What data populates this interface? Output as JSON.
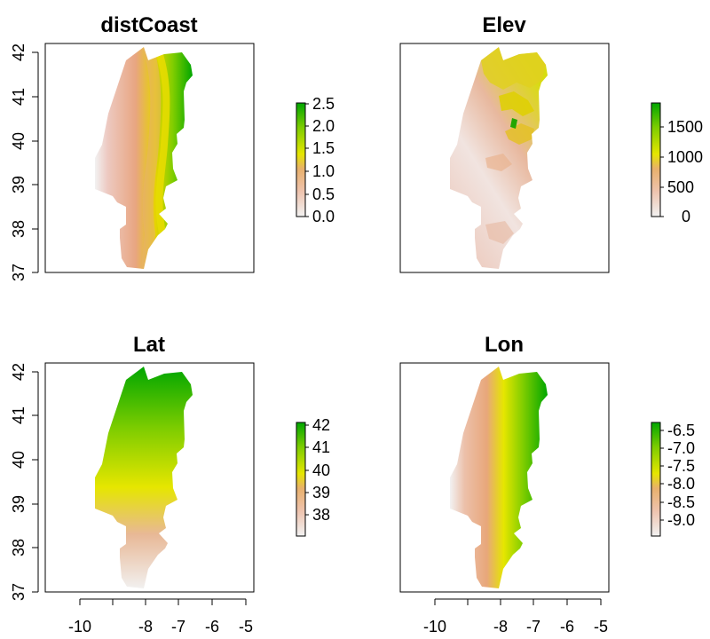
{
  "chart_data": [
    {
      "type": "heatmap",
      "title": "distCoast",
      "xlabel": "",
      "ylabel": "",
      "xlim": [
        -11,
        -4.9
      ],
      "ylim": [
        37,
        42
      ],
      "x_ticks": [],
      "y_ticks": [
        "37",
        "38",
        "39",
        "40",
        "41",
        "42"
      ],
      "field": "distance from coast, increasing from 0 at the west coast to 2.5 at the eastern border",
      "legend": {
        "ticks": [
          "0.0",
          "0.5",
          "1.0",
          "1.5",
          "2.0",
          "2.5"
        ],
        "min": 0,
        "max": 2.5
      }
    },
    {
      "type": "heatmap",
      "title": "Elev",
      "xlabel": "",
      "ylabel": "",
      "xlim": [
        -11,
        -4.9
      ],
      "ylim": [
        37,
        42
      ],
      "x_ticks": [],
      "y_ticks": [],
      "field": "elevation, low near the coast and high in the north-east mountains",
      "legend": {
        "ticks": [
          "0",
          "500",
          "1000",
          "1500"
        ],
        "min": 0,
        "max": 1900
      }
    },
    {
      "type": "heatmap",
      "title": "Lat",
      "xlabel": "",
      "ylabel": "",
      "xlim": [
        -11,
        -4.9
      ],
      "ylim": [
        37,
        42
      ],
      "x_ticks": [
        "-10",
        "-8",
        "-7",
        "-6",
        "-5"
      ],
      "y_ticks": [
        "37",
        "38",
        "39",
        "40",
        "41",
        "42"
      ],
      "field": "latitude, increasing from south (37) to north (42)",
      "legend": {
        "ticks": [
          "38",
          "39",
          "40",
          "41",
          "42"
        ],
        "min": 37,
        "max": 42.2
      }
    },
    {
      "type": "heatmap",
      "title": "Lon",
      "xlabel": "",
      "ylabel": "",
      "xlim": [
        -11,
        -4.9
      ],
      "ylim": [
        37,
        42
      ],
      "x_ticks": [
        "-10",
        "-8",
        "-7",
        "-6",
        "-5"
      ],
      "y_ticks": [],
      "field": "longitude, increasing from west (-9.5) to east (-6.2)",
      "legend": {
        "ticks": [
          "-9.0",
          "-8.5",
          "-8.0",
          "-7.5",
          "-7.0",
          "-6.5"
        ],
        "min": -9.5,
        "max": -6.2
      }
    }
  ],
  "colors": {
    "ramp": [
      "#F2F2F2",
      "#EEC3AE",
      "#E8B06C",
      "#E6E600",
      "#7FCD00",
      "#00A600"
    ],
    "frame": "#000000",
    "background": "#FFFFFF"
  }
}
